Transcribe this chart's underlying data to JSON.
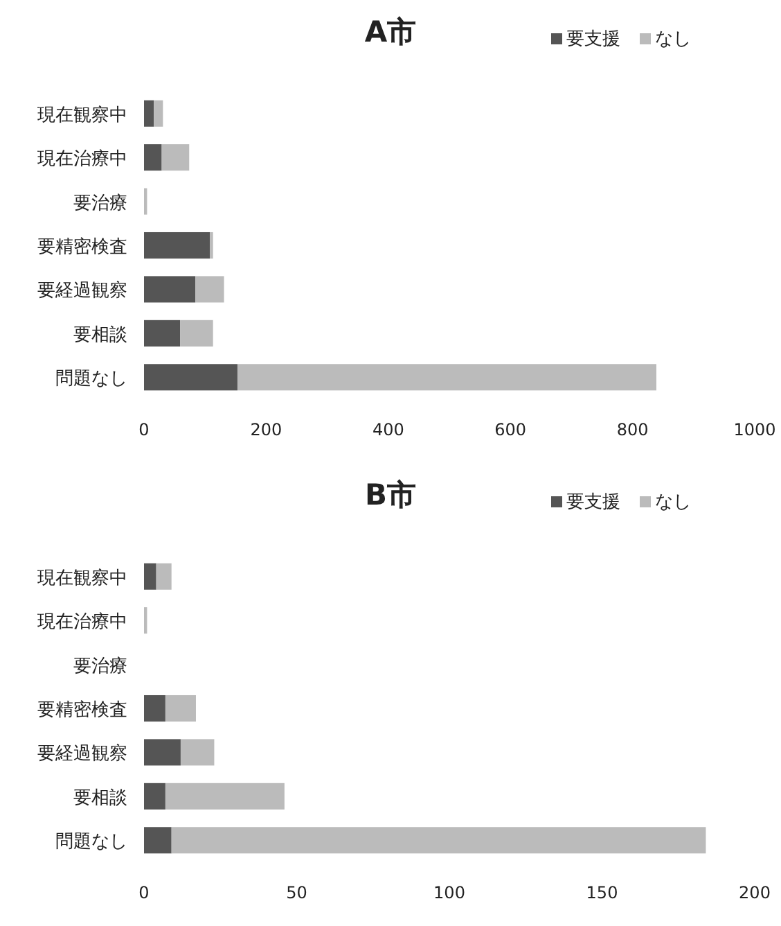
{
  "chart_data": [
    {
      "type": "bar",
      "orientation": "horizontal",
      "stacked": true,
      "title": "A市",
      "legend": "top right",
      "categories": [
        "現在観察中",
        "現在治療中",
        "要治療",
        "要精密検査",
        "要経過観察",
        "要相談",
        "問題なし"
      ],
      "series": [
        {
          "name": "要支援",
          "color": "#555555",
          "values": [
            16,
            29,
            0,
            108,
            84,
            59,
            153
          ]
        },
        {
          "name": "なし",
          "color": "#bbbbbb",
          "values": [
            15,
            45,
            5,
            5,
            47,
            54,
            686
          ]
        }
      ],
      "xlim": [
        0,
        1000
      ],
      "xticks": [
        0,
        200,
        400,
        600,
        800,
        1000
      ]
    },
    {
      "type": "bar",
      "orientation": "horizontal",
      "stacked": true,
      "title": "B市",
      "legend": "top right",
      "categories": [
        "現在観察中",
        "現在治療中",
        "要治療",
        "要精密検査",
        "要経過観察",
        "要相談",
        "問題なし"
      ],
      "series": [
        {
          "name": "要支援",
          "color": "#555555",
          "values": [
            4,
            0,
            0,
            7,
            12,
            7,
            9
          ]
        },
        {
          "name": "なし",
          "color": "#bbbbbb",
          "values": [
            5,
            1,
            0,
            10,
            11,
            39,
            175
          ]
        }
      ],
      "xlim": [
        0,
        200
      ],
      "xticks": [
        0,
        50,
        100,
        150,
        200
      ]
    }
  ]
}
